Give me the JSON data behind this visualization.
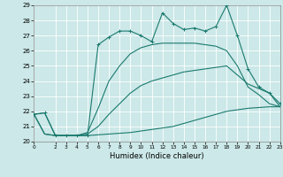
{
  "xlabel": "Humidex (Indice chaleur)",
  "bg_color": "#cce8e8",
  "grid_color": "#ffffff",
  "line_color": "#1a7a6e",
  "xlim": [
    0,
    23
  ],
  "ylim": [
    20,
    29
  ],
  "yticks": [
    20,
    21,
    22,
    23,
    24,
    25,
    26,
    27,
    28,
    29
  ],
  "xticks": [
    0,
    2,
    3,
    4,
    5,
    6,
    7,
    8,
    9,
    10,
    11,
    12,
    13,
    14,
    15,
    16,
    17,
    18,
    19,
    20,
    21,
    22,
    23
  ],
  "xtick_labels": [
    "0",
    "2",
    "3",
    "4",
    "5",
    "6",
    "7",
    "8",
    "9",
    "10",
    "11",
    "12",
    "13",
    "14",
    "15",
    "16",
    "17",
    "18",
    "19",
    "20",
    "21",
    "22",
    "23"
  ],
  "series1_x": [
    0,
    1,
    2,
    3,
    4,
    5,
    6,
    7,
    8,
    9,
    10,
    11,
    12,
    13,
    14,
    15,
    16,
    17,
    18,
    19,
    20,
    21,
    22,
    23
  ],
  "series1_y": [
    21.8,
    21.9,
    20.4,
    20.4,
    20.4,
    20.4,
    26.4,
    26.9,
    27.3,
    27.3,
    27.0,
    26.6,
    28.5,
    27.8,
    27.4,
    27.5,
    27.3,
    27.6,
    29.0,
    27.0,
    24.8,
    23.6,
    23.2,
    22.5
  ],
  "series2_x": [
    0,
    1,
    2,
    3,
    4,
    5,
    6,
    7,
    8,
    9,
    10,
    11,
    12,
    13,
    14,
    15,
    16,
    17,
    18,
    19,
    20,
    21,
    22,
    23
  ],
  "series2_y": [
    21.8,
    21.9,
    20.4,
    20.4,
    20.4,
    20.6,
    22.2,
    24.0,
    25.0,
    25.8,
    26.2,
    26.4,
    26.5,
    26.5,
    26.5,
    26.5,
    26.4,
    26.3,
    26.0,
    25.0,
    23.6,
    23.1,
    22.5,
    22.3
  ],
  "series3_x": [
    0,
    1,
    2,
    3,
    4,
    5,
    6,
    7,
    8,
    9,
    10,
    11,
    12,
    13,
    14,
    15,
    16,
    17,
    18,
    19,
    20,
    21,
    22,
    23
  ],
  "series3_y": [
    21.8,
    20.5,
    20.4,
    20.4,
    20.4,
    20.4,
    20.45,
    20.5,
    20.55,
    20.6,
    20.7,
    20.8,
    20.9,
    21.0,
    21.2,
    21.4,
    21.6,
    21.8,
    22.0,
    22.1,
    22.2,
    22.25,
    22.3,
    22.3
  ],
  "series4_x": [
    0,
    1,
    2,
    3,
    4,
    5,
    6,
    7,
    8,
    9,
    10,
    11,
    12,
    13,
    14,
    15,
    16,
    17,
    18,
    19,
    20,
    21,
    22,
    23
  ],
  "series4_y": [
    21.8,
    20.5,
    20.4,
    20.4,
    20.4,
    20.5,
    21.0,
    21.8,
    22.5,
    23.2,
    23.7,
    24.0,
    24.2,
    24.4,
    24.6,
    24.7,
    24.8,
    24.9,
    25.0,
    24.4,
    23.8,
    23.5,
    23.2,
    22.3
  ]
}
